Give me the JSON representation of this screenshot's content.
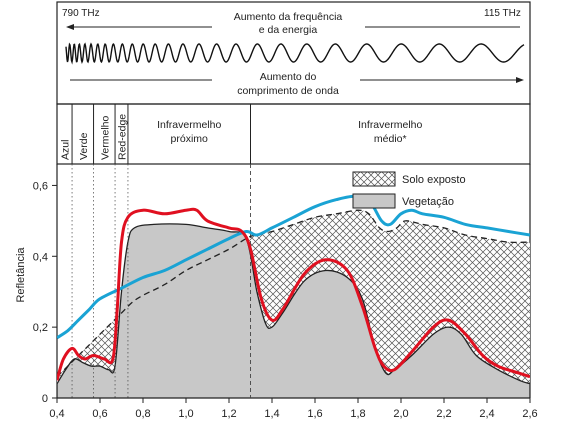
{
  "spectrum_header": {
    "left_frequency": "790 THz",
    "right_frequency": "115 THz",
    "freq_label_line1": "Aumento da frequência",
    "freq_label_line2": "e da energia",
    "wavelength_label_line1": "Aumento do",
    "wavelength_label_line2": "comprimento de onda"
  },
  "bands": [
    {
      "label": "Azul",
      "x_start": 0.4,
      "x_end": 0.47,
      "orientation": "vertical"
    },
    {
      "label": "Verde",
      "x_start": 0.47,
      "x_end": 0.57,
      "orientation": "vertical"
    },
    {
      "label": "Vermelho",
      "x_start": 0.57,
      "x_end": 0.67,
      "orientation": "vertical"
    },
    {
      "label": "Red-edge",
      "x_start": 0.67,
      "x_end": 0.73,
      "orientation": "vertical"
    },
    {
      "label_lines": [
        "Infravermelho",
        "próximo"
      ],
      "x_start": 0.73,
      "x_end": 1.3,
      "orientation": "horizontal"
    },
    {
      "label_lines": [
        "Infravermelho",
        "médio*"
      ],
      "x_start": 1.3,
      "x_end": 2.6,
      "orientation": "horizontal"
    }
  ],
  "chart_data": {
    "type": "line",
    "xlim": [
      0.4,
      2.6
    ],
    "ylim": [
      0,
      0.7
    ],
    "ylabel": "Refletância",
    "xlabel": "",
    "x_ticks": [
      0.4,
      0.6,
      0.8,
      1.0,
      1.2,
      1.4,
      1.6,
      1.8,
      2.0,
      2.2,
      2.4,
      2.6
    ],
    "x_tick_labels": [
      "0,4",
      "0,6",
      "0,8",
      "1,0",
      "1,2",
      "1,4",
      "1,6",
      "1,8",
      "2,0",
      "2,2",
      "2,4",
      "2,6"
    ],
    "y_ticks": [
      0,
      0.2,
      0.4,
      0.6
    ],
    "y_tick_labels": [
      "0",
      "0,2",
      "0,4",
      "0,6"
    ],
    "legend": {
      "position": "top-right",
      "entries": [
        {
          "label": "Solo exposto",
          "style": "hatched"
        },
        {
          "label": "Vegetação",
          "style": "gray-fill"
        }
      ]
    },
    "series": [
      {
        "name": "Solo exposto",
        "style": "dashed-black-hatched-area",
        "color": "#222222",
        "points": [
          [
            0.4,
            0.06
          ],
          [
            0.45,
            0.09
          ],
          [
            0.5,
            0.12
          ],
          [
            0.55,
            0.15
          ],
          [
            0.6,
            0.18
          ],
          [
            0.65,
            0.21
          ],
          [
            0.7,
            0.24
          ],
          [
            0.75,
            0.27
          ],
          [
            0.8,
            0.29
          ],
          [
            0.9,
            0.32
          ],
          [
            1.0,
            0.36
          ],
          [
            1.1,
            0.39
          ],
          [
            1.2,
            0.42
          ],
          [
            1.28,
            0.45
          ],
          [
            1.32,
            0.46
          ],
          [
            1.4,
            0.47
          ],
          [
            1.5,
            0.49
          ],
          [
            1.6,
            0.51
          ],
          [
            1.7,
            0.52
          ],
          [
            1.8,
            0.53
          ],
          [
            1.85,
            0.52
          ],
          [
            1.9,
            0.48
          ],
          [
            1.94,
            0.47
          ],
          [
            1.98,
            0.48
          ],
          [
            2.02,
            0.5
          ],
          [
            2.1,
            0.49
          ],
          [
            2.2,
            0.48
          ],
          [
            2.3,
            0.46
          ],
          [
            2.4,
            0.45
          ],
          [
            2.5,
            0.44
          ],
          [
            2.6,
            0.44
          ]
        ]
      },
      {
        "name": "Vegetação",
        "style": "gray-area",
        "color": "#c8c8c8",
        "points": [
          [
            0.4,
            0.04
          ],
          [
            0.44,
            0.08
          ],
          [
            0.48,
            0.11
          ],
          [
            0.52,
            0.1
          ],
          [
            0.56,
            0.09
          ],
          [
            0.6,
            0.09
          ],
          [
            0.64,
            0.08
          ],
          [
            0.67,
            0.09
          ],
          [
            0.7,
            0.3
          ],
          [
            0.73,
            0.44
          ],
          [
            0.76,
            0.48
          ],
          [
            0.85,
            0.49
          ],
          [
            1.0,
            0.49
          ],
          [
            1.1,
            0.48
          ],
          [
            1.2,
            0.47
          ],
          [
            1.28,
            0.45
          ],
          [
            1.33,
            0.3
          ],
          [
            1.37,
            0.21
          ],
          [
            1.4,
            0.2
          ],
          [
            1.45,
            0.24
          ],
          [
            1.55,
            0.33
          ],
          [
            1.65,
            0.36
          ],
          [
            1.75,
            0.34
          ],
          [
            1.82,
            0.28
          ],
          [
            1.88,
            0.14
          ],
          [
            1.93,
            0.07
          ],
          [
            1.97,
            0.08
          ],
          [
            2.05,
            0.12
          ],
          [
            2.15,
            0.18
          ],
          [
            2.22,
            0.2
          ],
          [
            2.28,
            0.18
          ],
          [
            2.35,
            0.12
          ],
          [
            2.45,
            0.08
          ],
          [
            2.55,
            0.05
          ],
          [
            2.6,
            0.04
          ]
        ]
      },
      {
        "name": "",
        "style": "red-line",
        "color": "#e01020",
        "points": [
          [
            0.4,
            0.05
          ],
          [
            0.43,
            0.11
          ],
          [
            0.47,
            0.14
          ],
          [
            0.5,
            0.12
          ],
          [
            0.53,
            0.11
          ],
          [
            0.57,
            0.12
          ],
          [
            0.62,
            0.11
          ],
          [
            0.66,
            0.11
          ],
          [
            0.68,
            0.25
          ],
          [
            0.7,
            0.44
          ],
          [
            0.73,
            0.51
          ],
          [
            0.8,
            0.53
          ],
          [
            0.9,
            0.52
          ],
          [
            1.0,
            0.53
          ],
          [
            1.05,
            0.53
          ],
          [
            1.1,
            0.5
          ],
          [
            1.2,
            0.48
          ],
          [
            1.26,
            0.47
          ],
          [
            1.3,
            0.42
          ],
          [
            1.35,
            0.28
          ],
          [
            1.4,
            0.22
          ],
          [
            1.45,
            0.25
          ],
          [
            1.55,
            0.35
          ],
          [
            1.65,
            0.39
          ],
          [
            1.75,
            0.36
          ],
          [
            1.82,
            0.26
          ],
          [
            1.88,
            0.14
          ],
          [
            1.92,
            0.09
          ],
          [
            1.97,
            0.08
          ],
          [
            2.05,
            0.13
          ],
          [
            2.15,
            0.2
          ],
          [
            2.22,
            0.22
          ],
          [
            2.3,
            0.18
          ],
          [
            2.38,
            0.12
          ],
          [
            2.45,
            0.09
          ],
          [
            2.55,
            0.07
          ],
          [
            2.6,
            0.06
          ]
        ]
      },
      {
        "name": "",
        "style": "cyan-line",
        "color": "#1aa3d4",
        "points": [
          [
            0.4,
            0.17
          ],
          [
            0.45,
            0.19
          ],
          [
            0.5,
            0.22
          ],
          [
            0.55,
            0.25
          ],
          [
            0.6,
            0.28
          ],
          [
            0.7,
            0.31
          ],
          [
            0.8,
            0.34
          ],
          [
            0.9,
            0.36
          ],
          [
            1.0,
            0.39
          ],
          [
            1.1,
            0.42
          ],
          [
            1.2,
            0.45
          ],
          [
            1.28,
            0.47
          ],
          [
            1.33,
            0.46
          ],
          [
            1.4,
            0.48
          ],
          [
            1.5,
            0.51
          ],
          [
            1.6,
            0.54
          ],
          [
            1.7,
            0.56
          ],
          [
            1.8,
            0.57
          ],
          [
            1.86,
            0.55
          ],
          [
            1.91,
            0.5
          ],
          [
            1.95,
            0.49
          ],
          [
            2.0,
            0.52
          ],
          [
            2.05,
            0.53
          ],
          [
            2.1,
            0.52
          ],
          [
            2.2,
            0.51
          ],
          [
            2.3,
            0.49
          ],
          [
            2.4,
            0.48
          ],
          [
            2.5,
            0.47
          ],
          [
            2.6,
            0.46
          ]
        ]
      }
    ]
  }
}
